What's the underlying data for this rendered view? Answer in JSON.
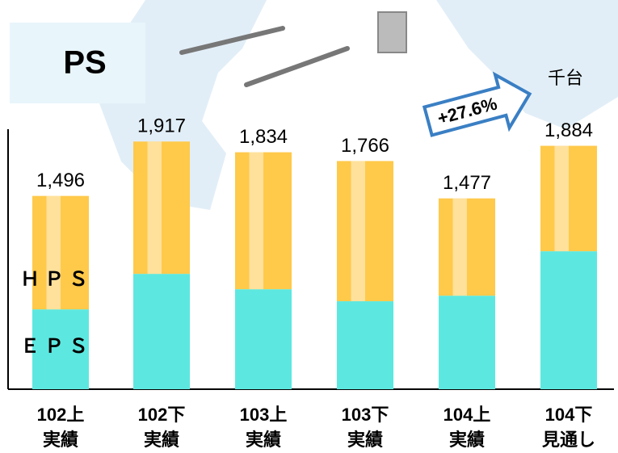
{
  "chart_data": {
    "type": "stacked-bar",
    "title": "PS",
    "unit_label": "千台",
    "annotation": "+27.6%",
    "categories": [
      [
        "102上",
        "実績"
      ],
      [
        "102下",
        "実績"
      ],
      [
        "103上",
        "実績"
      ],
      [
        "103下",
        "実績"
      ],
      [
        "104上",
        "実績"
      ],
      [
        "104下",
        "見通し"
      ]
    ],
    "series": [
      {
        "name": "ＥＰＳ",
        "color": "#5ce8e0",
        "values": [
          618,
          893,
          774,
          681,
          724,
          1068
        ]
      },
      {
        "name": "ＨＰＳ",
        "color": "#ffc94a",
        "values": [
          878,
          1024,
          1060,
          1085,
          753,
          816
        ]
      }
    ],
    "totals": [
      1496,
      1917,
      1834,
      1766,
      1477,
      1884
    ],
    "total_labels": [
      "1,496",
      "1,917",
      "1,834",
      "1,766",
      "1,477",
      "1,884"
    ],
    "ylim": [
      0,
      2000
    ]
  }
}
